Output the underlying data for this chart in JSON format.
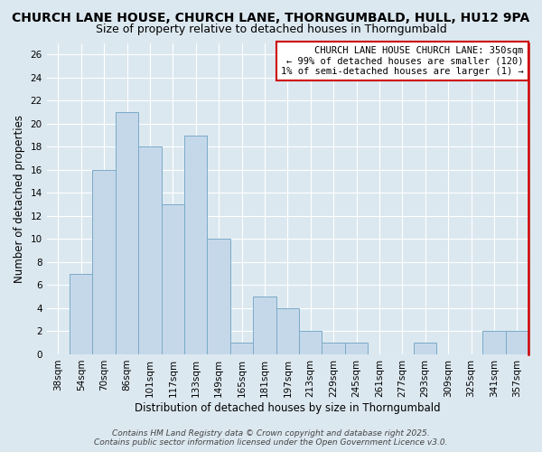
{
  "title": "CHURCH LANE HOUSE, CHURCH LANE, THORNGUMBALD, HULL, HU12 9PA",
  "subtitle": "Size of property relative to detached houses in Thorngumbald",
  "xlabel": "Distribution of detached houses by size in Thorngumbald",
  "ylabel": "Number of detached properties",
  "bar_labels": [
    "38sqm",
    "54sqm",
    "70sqm",
    "86sqm",
    "101sqm",
    "117sqm",
    "133sqm",
    "149sqm",
    "165sqm",
    "181sqm",
    "197sqm",
    "213sqm",
    "229sqm",
    "245sqm",
    "261sqm",
    "277sqm",
    "293sqm",
    "309sqm",
    "325sqm",
    "341sqm",
    "357sqm"
  ],
  "bar_values": [
    0,
    7,
    16,
    21,
    18,
    13,
    19,
    10,
    1,
    5,
    4,
    2,
    1,
    1,
    0,
    0,
    1,
    0,
    0,
    2,
    2
  ],
  "bar_color": "#c5d8ea",
  "bar_edge_color": "#7aaac8",
  "highlight_line_color": "#cc0000",
  "ylim": [
    0,
    27
  ],
  "yticks": [
    0,
    2,
    4,
    6,
    8,
    10,
    12,
    14,
    16,
    18,
    20,
    22,
    24,
    26
  ],
  "annotation_text": "CHURCH LANE HOUSE CHURCH LANE: 350sqm\n← 99% of detached houses are smaller (120)\n1% of semi-detached houses are larger (1) →",
  "annotation_box_facecolor": "#ffffff",
  "annotation_box_edgecolor": "#cc0000",
  "footer_text": "Contains HM Land Registry data © Crown copyright and database right 2025.\nContains public sector information licensed under the Open Government Licence v3.0.",
  "background_color": "#dce8f0",
  "grid_color": "#ffffff",
  "title_fontsize": 10,
  "subtitle_fontsize": 9,
  "axis_label_fontsize": 8.5,
  "tick_fontsize": 7.5,
  "annotation_fontsize": 7.5,
  "footer_fontsize": 6.5
}
